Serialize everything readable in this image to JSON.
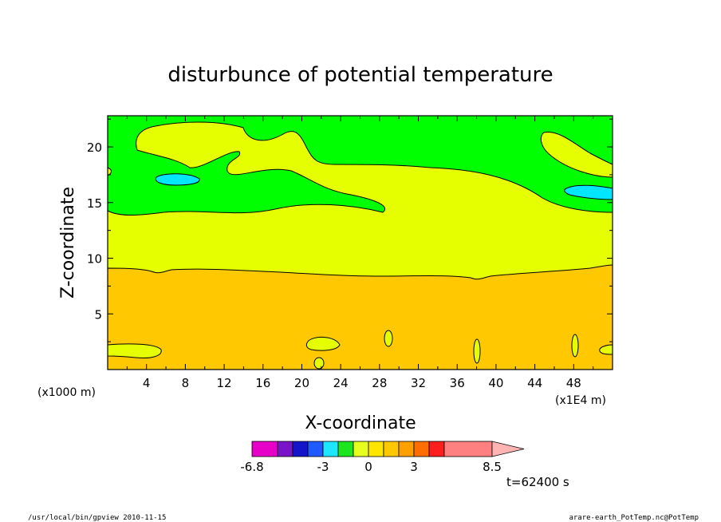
{
  "chart_data": {
    "type": "contour",
    "title": "disturbunce of potential temperature",
    "xlabel": "X-coordinate",
    "ylabel": "Z-coordinate",
    "x_unit_left": "(x1000 m)",
    "x_unit_right": "(x1E4 m)",
    "xlim": [
      0,
      52
    ],
    "ylim": [
      0,
      22.8
    ],
    "x_ticks": [
      4,
      8,
      12,
      16,
      20,
      24,
      28,
      32,
      36,
      40,
      44,
      48
    ],
    "y_ticks": [
      5,
      10,
      15,
      20
    ],
    "colorbar": {
      "colors": [
        "#e600c8",
        "#7a14c8",
        "#1414c8",
        "#1e5aff",
        "#1ee6ff",
        "#1ee61e",
        "#e6ff1e",
        "#ffe600",
        "#ffc800",
        "#ffa000",
        "#ff6e00",
        "#ff1e1e",
        "#ff8080"
      ],
      "extend_color": "#ffb4b4",
      "labels": [
        {
          "text": "-6.8",
          "pos": 0
        },
        {
          "text": "-3",
          "pos": 4
        },
        {
          "text": "0",
          "pos": 7
        },
        {
          "text": "3",
          "pos": 10
        },
        {
          "text": "8.5",
          "pos": 15
        }
      ]
    },
    "regions": [
      {
        "level": "orange",
        "color": "#ffc800",
        "z_range": [
          0,
          9.3
        ]
      },
      {
        "level": "yellow",
        "color": "#e6ff00",
        "z_range": [
          9.3,
          14.5
        ]
      },
      {
        "level": "green",
        "color": "#00ff00",
        "z_range": [
          14.5,
          22.8
        ]
      },
      {
        "level": "cyan",
        "color": "#00e6ff",
        "note": "small cells near z=16-17"
      }
    ],
    "time_label": "t=62400 s"
  },
  "footer": {
    "left": "/usr/local/bin/gpview  2010-11-15",
    "right": "arare-earth_PotTemp.nc@PotTemp"
  }
}
